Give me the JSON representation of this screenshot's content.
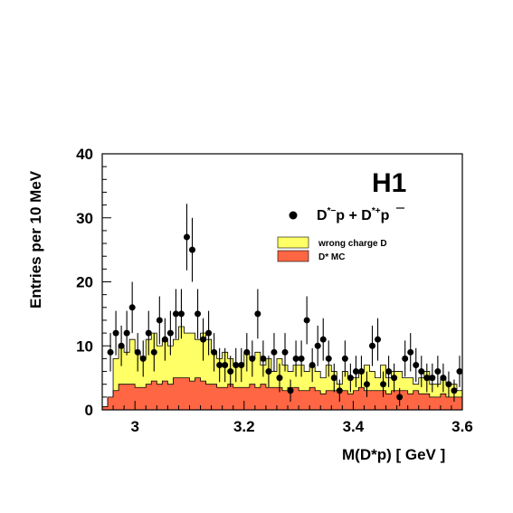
{
  "chart_data": {
    "type": "histogram",
    "experiment_label": "H1",
    "xlabel": "M(D*p)  [ GeV ]",
    "ylabel": "Entries per 10 MeV",
    "xlim": [
      2.94,
      3.6
    ],
    "ylim": [
      0,
      40
    ],
    "x_ticks": [
      3.0,
      3.2,
      3.4,
      3.6
    ],
    "x_tick_labels": [
      "3",
      "3.2",
      "3.4",
      "3.6"
    ],
    "y_ticks": [
      0,
      10,
      20,
      30,
      40
    ],
    "y_tick_labels": [
      "0",
      "10",
      "20",
      "30",
      "40"
    ],
    "legend": {
      "data": {
        "prefix": "D",
        "sup1": "*−",
        "mid": "p + D",
        "sup2": "*+",
        "suffix": "p"
      },
      "wrong_charge": "wrong charge D",
      "mc": "D* MC"
    },
    "colors": {
      "wrong_charge": "#ffff66",
      "mc": "#ff6644",
      "data": "#000000"
    },
    "bin_edges": [
      2.94,
      2.95,
      2.96,
      2.97,
      2.98,
      2.99,
      3.0,
      3.01,
      3.02,
      3.03,
      3.04,
      3.05,
      3.06,
      3.07,
      3.08,
      3.09,
      3.1,
      3.11,
      3.12,
      3.13,
      3.14,
      3.15,
      3.16,
      3.17,
      3.18,
      3.19,
      3.2,
      3.21,
      3.22,
      3.23,
      3.24,
      3.25,
      3.26,
      3.27,
      3.28,
      3.29,
      3.3,
      3.31,
      3.32,
      3.33,
      3.34,
      3.35,
      3.36,
      3.37,
      3.38,
      3.39,
      3.4,
      3.41,
      3.42,
      3.43,
      3.44,
      3.45,
      3.46,
      3.47,
      3.48,
      3.49,
      3.5,
      3.51,
      3.52,
      3.53,
      3.54,
      3.55,
      3.56,
      3.57,
      3.58,
      3.59,
      3.6
    ],
    "wrong_charge_bg": [
      0.5,
      2,
      8,
      10,
      9,
      11,
      9,
      8,
      11,
      12,
      10,
      11,
      10,
      11,
      13,
      12,
      12,
      11,
      12,
      11,
      9,
      8,
      9,
      8,
      7,
      7,
      9,
      8,
      9,
      7,
      8,
      6,
      8,
      7,
      6,
      7,
      7,
      6,
      7,
      6,
      5,
      7,
      6,
      4,
      6,
      5,
      5,
      6,
      7,
      6,
      5,
      7,
      5,
      6,
      6,
      5,
      5,
      4,
      5,
      6,
      4,
      4,
      5,
      4,
      4,
      3
    ],
    "dstar_mc": [
      0.5,
      2,
      3,
      4,
      4,
      4,
      3.5,
      3.5,
      4,
      4.5,
      4,
      4.5,
      4,
      5,
      5,
      5,
      4.5,
      5,
      4.5,
      4,
      4,
      3.5,
      3.5,
      4,
      3.5,
      3.5,
      3.5,
      4,
      3.5,
      4,
      3.5,
      3.5,
      3.5,
      3,
      3.5,
      3.5,
      3,
      3,
      3.5,
      3,
      2.5,
      3,
      3,
      3,
      3,
      2.5,
      3,
      3.5,
      3,
      3,
      3,
      3,
      2.5,
      3,
      3,
      3,
      2.5,
      3,
      2.5,
      2.5,
      2,
      2,
      2.5,
      2,
      2,
      2
    ],
    "data_points": [
      {
        "x": 2.955,
        "y": 9
      },
      {
        "x": 2.965,
        "y": 12
      },
      {
        "x": 2.975,
        "y": 10
      },
      {
        "x": 2.985,
        "y": 12
      },
      {
        "x": 2.995,
        "y": 16
      },
      {
        "x": 3.005,
        "y": 9
      },
      {
        "x": 3.015,
        "y": 8
      },
      {
        "x": 3.025,
        "y": 12
      },
      {
        "x": 3.035,
        "y": 9
      },
      {
        "x": 3.045,
        "y": 14
      },
      {
        "x": 3.055,
        "y": 11
      },
      {
        "x": 3.065,
        "y": 12
      },
      {
        "x": 3.075,
        "y": 15
      },
      {
        "x": 3.085,
        "y": 15
      },
      {
        "x": 3.095,
        "y": 27
      },
      {
        "x": 3.105,
        "y": 25
      },
      {
        "x": 3.115,
        "y": 15
      },
      {
        "x": 3.125,
        "y": 11
      },
      {
        "x": 3.135,
        "y": 12
      },
      {
        "x": 3.145,
        "y": 9
      },
      {
        "x": 3.155,
        "y": 7
      },
      {
        "x": 3.165,
        "y": 7
      },
      {
        "x": 3.175,
        "y": 6
      },
      {
        "x": 3.185,
        "y": 7
      },
      {
        "x": 3.195,
        "y": 7
      },
      {
        "x": 3.205,
        "y": 9
      },
      {
        "x": 3.215,
        "y": 8
      },
      {
        "x": 3.225,
        "y": 15
      },
      {
        "x": 3.235,
        "y": 8
      },
      {
        "x": 3.245,
        "y": 6
      },
      {
        "x": 3.255,
        "y": 9
      },
      {
        "x": 3.265,
        "y": 5
      },
      {
        "x": 3.275,
        "y": 9
      },
      {
        "x": 3.285,
        "y": 3
      },
      {
        "x": 3.295,
        "y": 8
      },
      {
        "x": 3.305,
        "y": 8
      },
      {
        "x": 3.315,
        "y": 14
      },
      {
        "x": 3.325,
        "y": 7
      },
      {
        "x": 3.335,
        "y": 10
      },
      {
        "x": 3.345,
        "y": 11
      },
      {
        "x": 3.355,
        "y": 8
      },
      {
        "x": 3.365,
        "y": 5
      },
      {
        "x": 3.375,
        "y": 3
      },
      {
        "x": 3.385,
        "y": 8
      },
      {
        "x": 3.395,
        "y": 5
      },
      {
        "x": 3.405,
        "y": 6
      },
      {
        "x": 3.415,
        "y": 6
      },
      {
        "x": 3.425,
        "y": 4
      },
      {
        "x": 3.435,
        "y": 10
      },
      {
        "x": 3.445,
        "y": 11
      },
      {
        "x": 3.455,
        "y": 4
      },
      {
        "x": 3.465,
        "y": 6
      },
      {
        "x": 3.475,
        "y": 5
      },
      {
        "x": 3.485,
        "y": 2
      },
      {
        "x": 3.495,
        "y": 8
      },
      {
        "x": 3.505,
        "y": 9
      },
      {
        "x": 3.515,
        "y": 7
      },
      {
        "x": 3.525,
        "y": 6
      },
      {
        "x": 3.535,
        "y": 5
      },
      {
        "x": 3.545,
        "y": 5
      },
      {
        "x": 3.555,
        "y": 6
      },
      {
        "x": 3.565,
        "y": 5
      },
      {
        "x": 3.575,
        "y": 4
      },
      {
        "x": 3.585,
        "y": 3
      },
      {
        "x": 3.595,
        "y": 6
      }
    ]
  }
}
